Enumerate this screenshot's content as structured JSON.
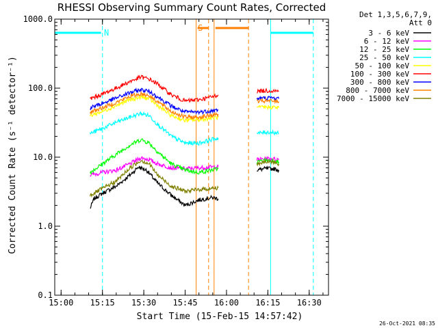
{
  "chart_data": {
    "type": "line",
    "title": "RHESSI Observing Summary Count Rates, Corrected",
    "xlabel": "Start Time (15-Feb-15 14:57:42)",
    "ylabel": "Corrected Count Rate (s⁻¹ detector⁻¹)",
    "y_scale": "log",
    "ylim": [
      0.1,
      1000.0
    ],
    "xlim": [
      "14:57:42",
      "16:37:00"
    ],
    "x_ticks": [
      "15:00",
      "15:15",
      "15:30",
      "15:45",
      "16:00",
      "16:15",
      "16:30"
    ],
    "y_ticks": [
      "0.1",
      "1.0",
      "10.0",
      "100.0",
      "1000.0"
    ],
    "legend_placement": "top-right, outside plot",
    "detectors_label": "Det 1,3,5,6,7,9,",
    "attenuator_label": "Att 0",
    "footer_timestamp": "26-Oct-2021 08:35",
    "flags": [
      {
        "label": "N",
        "color": "#00ffff",
        "bars": [
          [
            "14:57:42",
            "15:14:30"
          ],
          [
            "16:16:00",
            "16:31:30"
          ]
        ],
        "solid_lines": [
          "14:57:42",
          "16:16:00"
        ],
        "dashed_lines": [
          "15:15:00",
          "16:31:30"
        ]
      },
      {
        "label": "S",
        "color": "#ff8000",
        "bars": [
          [
            "15:49:30",
            "15:53:30"
          ],
          [
            "15:56:00",
            "16:08:00"
          ]
        ],
        "solid_lines": [
          "15:49:00",
          "15:55:30"
        ],
        "dashed_lines": [
          "15:53:30",
          "16:08:00"
        ]
      }
    ],
    "series": [
      {
        "name": "3 - 6 keV",
        "color": "#000000",
        "segments": [
          {
            "x": [
              "15:10:30",
              "15:12:00",
              "15:15:00",
              "15:20:00",
              "15:25:00",
              "15:28:00",
              "15:31:00",
              "15:35:00",
              "15:40:00",
              "15:45:00",
              "15:50:00",
              "15:55:00",
              "15:57:00"
            ],
            "y": [
              1.8,
              2.5,
              3.0,
              3.8,
              5.5,
              7.2,
              6.5,
              4.2,
              2.8,
              2.0,
              2.4,
              2.6,
              2.5
            ]
          },
          {
            "x": [
              "16:11:00",
              "16:14:00",
              "16:17:00",
              "16:19:00"
            ],
            "y": [
              6.5,
              6.8,
              6.8,
              6.5
            ]
          }
        ]
      },
      {
        "name": "6 - 12 keV",
        "color": "#ff00ff",
        "segments": [
          {
            "x": [
              "15:10:30",
              "15:15:00",
              "15:20:00",
              "15:25:00",
              "15:29:00",
              "15:32:00",
              "15:35:00",
              "15:40:00",
              "15:45:00",
              "15:50:00",
              "15:57:00"
            ],
            "y": [
              5.5,
              6.0,
              6.5,
              8.0,
              9.8,
              9.2,
              8.0,
              7.0,
              6.8,
              7.0,
              7.3
            ]
          },
          {
            "x": [
              "16:11:00",
              "16:14:00",
              "16:17:00",
              "16:19:00"
            ],
            "y": [
              9.2,
              9.5,
              9.5,
              9.2
            ]
          }
        ]
      },
      {
        "name": "12 - 25 keV",
        "color": "#00ff00",
        "segments": [
          {
            "x": [
              "15:10:30",
              "15:15:00",
              "15:20:00",
              "15:25:00",
              "15:29:00",
              "15:32:00",
              "15:35:00",
              "15:40:00",
              "15:45:00",
              "15:50:00",
              "15:57:00"
            ],
            "y": [
              6.0,
              8.0,
              11.0,
              15.0,
              18.0,
              16.0,
              12.0,
              8.0,
              6.5,
              6.0,
              6.8
            ]
          },
          {
            "x": [
              "16:11:00",
              "16:14:00",
              "16:17:00",
              "16:19:00"
            ],
            "y": [
              8.5,
              9.0,
              9.0,
              8.5
            ]
          }
        ]
      },
      {
        "name": "25 - 50 keV",
        "color": "#00ffff",
        "segments": [
          {
            "x": [
              "15:10:30",
              "15:15:00",
              "15:20:00",
              "15:25:00",
              "15:29:00",
              "15:32:00",
              "15:35:00",
              "15:40:00",
              "15:45:00",
              "15:50:00",
              "15:57:00"
            ],
            "y": [
              22.0,
              26.0,
              32.0,
              38.0,
              43.0,
              40.0,
              30.0,
              20.0,
              16.0,
              16.0,
              19.0
            ]
          },
          {
            "x": [
              "16:11:00",
              "16:14:00",
              "16:17:00",
              "16:19:00"
            ],
            "y": [
              22.0,
              23.0,
              23.0,
              22.0
            ]
          }
        ]
      },
      {
        "name": "50 - 100 keV",
        "color": "#ffff00",
        "segments": [
          {
            "x": [
              "15:10:30",
              "15:15:00",
              "15:20:00",
              "15:25:00",
              "15:29:00",
              "15:32:00",
              "15:35:00",
              "15:40:00",
              "15:45:00",
              "15:50:00",
              "15:57:00"
            ],
            "y": [
              40.0,
              46.0,
              56.0,
              68.0,
              74.0,
              70.0,
              56.0,
              40.0,
              34.0,
              35.0,
              38.0
            ]
          },
          {
            "x": [
              "16:11:00",
              "16:14:00",
              "16:17:00",
              "16:19:00"
            ],
            "y": [
              52.0,
              53.0,
              53.0,
              52.0
            ]
          }
        ]
      },
      {
        "name": "100 - 300 keV",
        "color": "#ff0000",
        "segments": [
          {
            "x": [
              "15:10:30",
              "15:15:00",
              "15:20:00",
              "15:25:00",
              "15:29:00",
              "15:32:00",
              "15:35:00",
              "15:40:00",
              "15:45:00",
              "15:50:00",
              "15:55:00",
              "15:57:00"
            ],
            "y": [
              70.0,
              82.0,
              100.0,
              125.0,
              145.0,
              135.0,
              115.0,
              80.0,
              65.0,
              68.0,
              75.0,
              80.0
            ]
          },
          {
            "x": [
              "16:11:00",
              "16:14:00",
              "16:17:00",
              "16:19:00"
            ],
            "y": [
              90.0,
              92.0,
              92.0,
              90.0
            ]
          }
        ]
      },
      {
        "name": "300 - 800 keV",
        "color": "#0000ff",
        "segments": [
          {
            "x": [
              "15:10:30",
              "15:15:00",
              "15:20:00",
              "15:25:00",
              "15:29:00",
              "15:32:00",
              "15:35:00",
              "15:40:00",
              "15:45:00",
              "15:50:00",
              "15:57:00"
            ],
            "y": [
              52.0,
              60.0,
              72.0,
              86.0,
              95.0,
              90.0,
              75.0,
              55.0,
              45.0,
              45.0,
              48.0
            ]
          },
          {
            "x": [
              "16:11:00",
              "16:14:00",
              "16:17:00",
              "16:19:00"
            ],
            "y": [
              70.0,
              72.0,
              72.0,
              70.0
            ]
          }
        ]
      },
      {
        "name": "800 - 7000 keV",
        "color": "#ff8000",
        "segments": [
          {
            "x": [
              "15:10:30",
              "15:15:00",
              "15:20:00",
              "15:25:00",
              "15:29:00",
              "15:32:00",
              "15:35:00",
              "15:40:00",
              "15:45:00",
              "15:50:00",
              "15:57:00"
            ],
            "y": [
              45.0,
              52.0,
              62.0,
              76.0,
              83.0,
              78.0,
              64.0,
              46.0,
              38.0,
              38.0,
              42.0
            ]
          },
          {
            "x": [
              "16:11:00",
              "16:14:00",
              "16:17:00",
              "16:19:00"
            ],
            "y": [
              64.0,
              65.0,
              65.0,
              64.0
            ]
          }
        ]
      },
      {
        "name": "7000 - 15000 keV",
        "color": "#808000",
        "segments": [
          {
            "x": [
              "15:10:30",
              "15:15:00",
              "15:20:00",
              "15:25:00",
              "15:29:00",
              "15:32:00",
              "15:35:00",
              "15:40:00",
              "15:45:00",
              "15:50:00",
              "15:57:00"
            ],
            "y": [
              2.8,
              3.5,
              4.5,
              7.0,
              9.0,
              8.0,
              5.5,
              3.8,
              3.2,
              3.4,
              3.6
            ]
          },
          {
            "x": [
              "16:11:00",
              "16:14:00",
              "16:17:00",
              "16:19:00"
            ],
            "y": [
              8.0,
              8.5,
              8.5,
              8.0
            ]
          }
        ]
      }
    ]
  }
}
